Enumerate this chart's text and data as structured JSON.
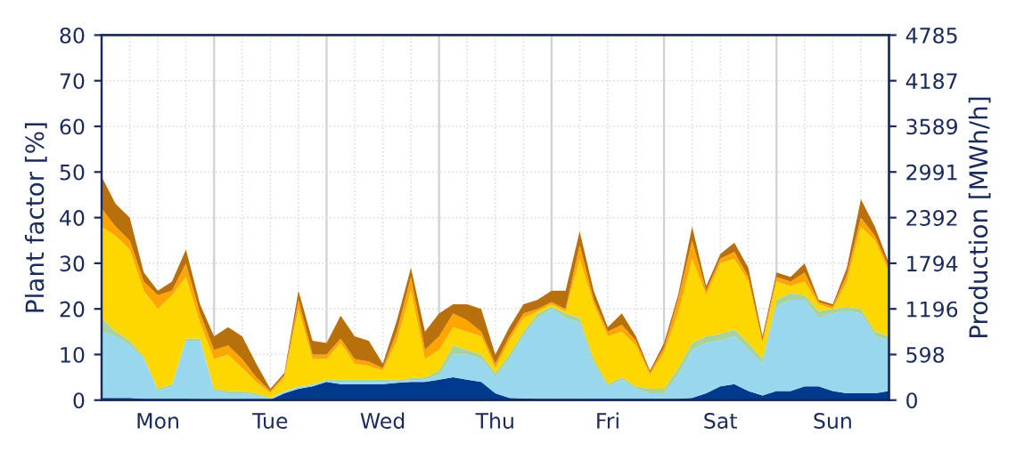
{
  "chart_data": {
    "type": "area",
    "stacked": true,
    "ylabel": "Plant factor [%]",
    "y2label": "Production [MWh/h]",
    "categories": [
      null,
      null,
      null,
      null,
      "Mon",
      null,
      null,
      null,
      null,
      null,
      null,
      null,
      "Tue",
      null,
      null,
      null,
      null,
      null,
      null,
      null,
      "Wed",
      null,
      null,
      null,
      null,
      null,
      null,
      null,
      "Thu",
      null,
      null,
      null,
      null,
      null,
      null,
      null,
      "Fri",
      null,
      null,
      null,
      null,
      null,
      null,
      null,
      "Sat",
      null,
      null,
      null,
      null,
      null,
      null,
      null,
      "Sun",
      null,
      null,
      null,
      null
    ],
    "series": [
      {
        "color": "#003a8c",
        "values": [
          0.5,
          0.5,
          0.5,
          0.3,
          0.3,
          0.3,
          0.3,
          0.2,
          0.2,
          0.2,
          0.2,
          0.1,
          0.1,
          1.5,
          2.5,
          3,
          4,
          3.5,
          3.5,
          3.5,
          3.5,
          3.8,
          4,
          4,
          4.5,
          5,
          4.5,
          4,
          1.5,
          0.5,
          0.4,
          0.3,
          0.3,
          0.3,
          0.3,
          0.3,
          0.3,
          0.3,
          0.3,
          0.3,
          0.3,
          0.3,
          0.5,
          1.5,
          3,
          3.5,
          2,
          1,
          2,
          2,
          3,
          3,
          2,
          1.5,
          1.5,
          1.5,
          2
        ]
      },
      {
        "color": "#98d7ee",
        "values": [
          14.5,
          13.5,
          11.5,
          8.7,
          1.7,
          2.7,
          12.7,
          12.8,
          1.8,
          1.3,
          1.3,
          0.9,
          0.2,
          0.3,
          0.3,
          0.2,
          0.2,
          0.5,
          0.5,
          0.5,
          0.5,
          0.4,
          0.4,
          0.5,
          1,
          5,
          5.5,
          5,
          3.5,
          8.5,
          13.6,
          17.7,
          19.7,
          17.7,
          16.7,
          7.7,
          2.7,
          4.2,
          2.2,
          1.2,
          1.2,
          5.2,
          10.5,
          11,
          10,
          10.5,
          9,
          7,
          18.5,
          20,
          19,
          15,
          17,
          18,
          17.5,
          12.5,
          11
        ]
      },
      {
        "color": "#a9d39e",
        "values": [
          3,
          1,
          1,
          0.5,
          0.5,
          0.5,
          0.5,
          0.5,
          0.5,
          0.5,
          0.5,
          0.5,
          0.2,
          0.2,
          0.2,
          0.3,
          0.3,
          0.5,
          0.5,
          0.5,
          0.5,
          0.3,
          0.4,
          0.5,
          1,
          2,
          1,
          1,
          1,
          1,
          1,
          1,
          0.5,
          1,
          1,
          1,
          0.5,
          0.5,
          0.5,
          1,
          1,
          1.5,
          1.5,
          1.5,
          1.5,
          1.5,
          1.5,
          1,
          1.5,
          1.5,
          1,
          1.5,
          1,
          1,
          1,
          1,
          1
        ]
      },
      {
        "color": "#ffd700",
        "values": [
          20,
          21,
          20,
          14.5,
          17.5,
          19.5,
          13.5,
          3.5,
          6.5,
          8,
          5,
          2.5,
          1,
          3,
          17,
          5.5,
          4.5,
          8,
          3.5,
          3,
          2,
          8.5,
          19.2,
          4,
          4.5,
          4,
          4,
          4,
          1,
          3,
          3,
          0.5,
          0.5,
          0.5,
          13,
          12,
          10.5,
          10,
          9,
          3,
          8,
          12,
          18.5,
          9,
          15.5,
          15.5,
          13.5,
          3.5,
          4,
          1.5,
          3,
          1.5,
          0,
          5.5,
          18,
          20,
          14
        ]
      },
      {
        "color": "#ffa500",
        "values": [
          4,
          2,
          2,
          2,
          3,
          1,
          3,
          2,
          2,
          2,
          2,
          1,
          0.5,
          0.5,
          2,
          1,
          1,
          1,
          1,
          1,
          0.5,
          2,
          3,
          2,
          3,
          3,
          2.5,
          1,
          1,
          1,
          1,
          0.5,
          0.5,
          0.5,
          3,
          1,
          1,
          1.5,
          1,
          0.5,
          1,
          3,
          4,
          1,
          1,
          1.5,
          1,
          0.5,
          1,
          1,
          2,
          0.5,
          0.5,
          1.5,
          2,
          1,
          1
        ]
      },
      {
        "color": "#b8700c",
        "values": [
          7,
          5,
          5,
          2,
          1,
          2,
          3,
          2,
          3,
          4,
          5,
          3,
          0.5,
          0.5,
          2,
          3,
          2.5,
          5,
          5,
          4.5,
          1,
          2.5,
          2,
          4,
          5,
          2,
          3.5,
          5,
          2,
          2,
          2,
          2,
          2.5,
          4,
          3,
          2,
          1,
          2.5,
          1,
          0.5,
          1,
          1,
          3,
          1,
          1,
          2,
          2,
          1,
          1,
          1,
          2,
          0.5,
          0.5,
          1.5,
          4,
          2,
          1
        ]
      }
    ],
    "ylim": [
      0,
      80
    ],
    "yticks": [
      0,
      10,
      20,
      30,
      40,
      50,
      60,
      70,
      80
    ],
    "y2lim": [
      0,
      4785
    ],
    "y2ticks": [
      0,
      598,
      1196,
      1794,
      2392,
      2991,
      3589,
      4187,
      4785
    ],
    "grid": true,
    "legend": false
  }
}
